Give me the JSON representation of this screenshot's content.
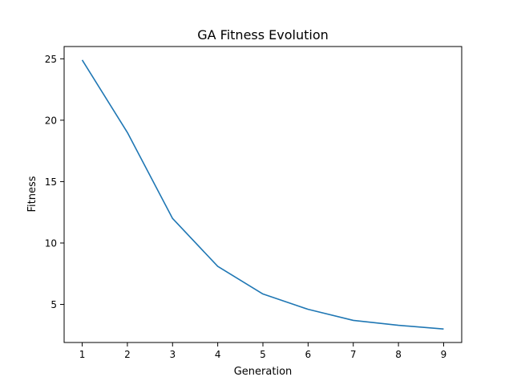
{
  "chart_data": {
    "type": "line",
    "title": "GA Fitness Evolution",
    "xlabel": "Generation",
    "ylabel": "Fitness",
    "x": [
      1,
      2,
      3,
      4,
      5,
      6,
      7,
      8,
      9
    ],
    "series": [
      {
        "values": [
          24.9,
          19.0,
          12.0,
          8.1,
          5.85,
          4.6,
          3.7,
          3.3,
          3.0
        ],
        "color": "#1f77b4"
      }
    ],
    "xticks": [
      1,
      2,
      3,
      4,
      5,
      6,
      7,
      8,
      9
    ],
    "yticks": [
      5,
      10,
      15,
      20,
      25
    ],
    "xlim": [
      0.6,
      9.4
    ],
    "ylim": [
      1.9,
      26.0
    ],
    "grid": false,
    "legend": "none"
  }
}
